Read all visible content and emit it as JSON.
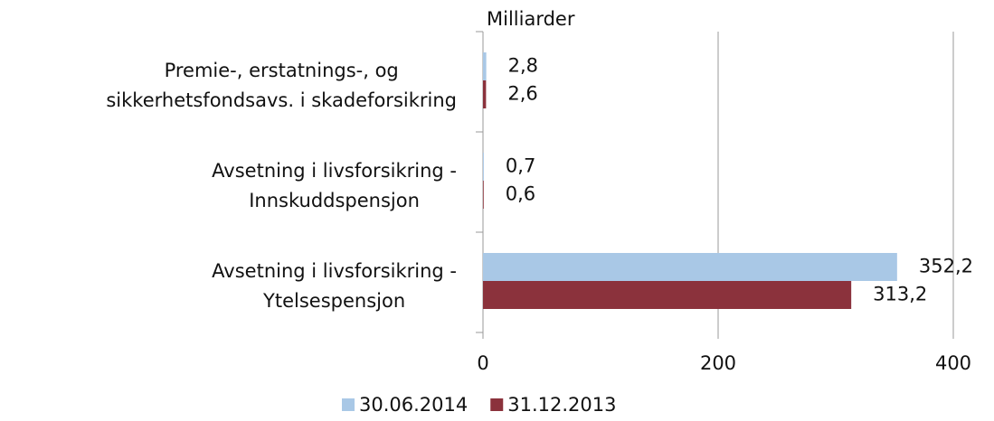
{
  "chart_data": {
    "type": "hbar",
    "axis_label": "Milliarder",
    "categories": [
      "Premie-, erstatnings-, og\nsikkerhetsfondsavs. i skadeforsikring",
      "Avsetning i livsforsikring  -\nInnskuddspensjon",
      "Avsetning i livsforsikring  -\nYtelsespensjon"
    ],
    "series": [
      {
        "name": "30.06.2014",
        "color": "#a9c8e6",
        "values": [
          2.8,
          0.7,
          352.2
        ],
        "value_labels": [
          "2,8",
          "0,7",
          "352,2"
        ]
      },
      {
        "name": "31.12.2013",
        "color": "#8b323c",
        "values": [
          2.6,
          0.6,
          313.2
        ],
        "value_labels": [
          "2,6",
          "0,6",
          "313,2"
        ]
      }
    ],
    "xlim": [
      0,
      400
    ],
    "xticks": [
      0,
      200,
      400
    ],
    "grid": true,
    "legend": "bottom"
  }
}
